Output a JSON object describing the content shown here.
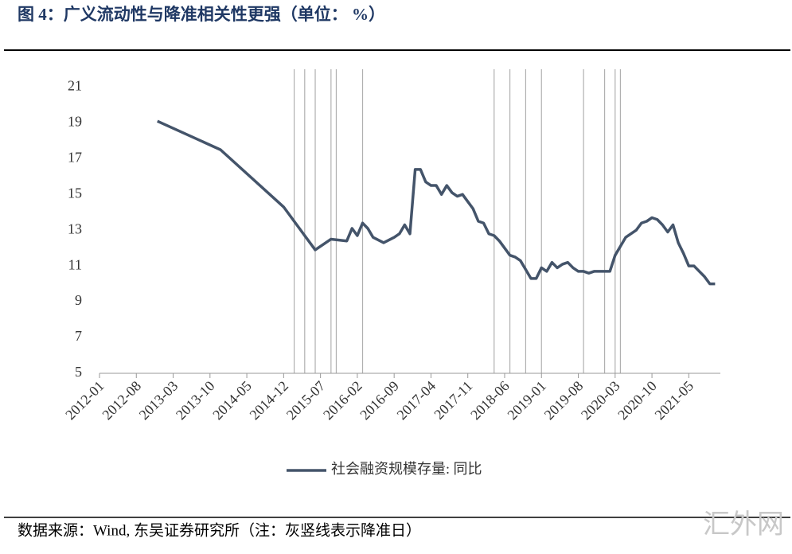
{
  "chart_data": {
    "type": "line",
    "title": "图 4：广义流动性与降准相关性更强（单位：  %）",
    "source": "数据来源：Wind, 东吴证券研究所（注：灰竖线表示降准日）",
    "watermark": "汇外网",
    "xlim": [
      "2012-01",
      "2021-11"
    ],
    "xticks": [
      "2012-01",
      "2012-08",
      "2013-03",
      "2013-10",
      "2014-05",
      "2014-12",
      "2015-07",
      "2016-02",
      "2016-09",
      "2017-04",
      "2017-11",
      "2018-06",
      "2019-01",
      "2019-08",
      "2020-03",
      "2020-10",
      "2021-05"
    ],
    "ylim": [
      5,
      22
    ],
    "yticks": [
      5,
      7,
      9,
      11,
      13,
      15,
      17,
      19,
      21
    ],
    "rrr_cut_color": "#b0b0b0",
    "rrr_cuts": [
      "2015-02",
      "2015-04",
      "2015-06",
      "2015-09",
      "2015-10",
      "2016-03",
      "2018-04",
      "2018-07",
      "2018-10",
      "2019-01",
      "2019-09",
      "2020-01",
      "2020-03",
      "2020-04"
    ],
    "x": [
      "2012-12",
      "2013-12",
      "2014-12",
      "2015-03",
      "2015-06",
      "2015-09",
      "2015-12",
      "2016-01",
      "2016-02",
      "2016-03",
      "2016-04",
      "2016-05",
      "2016-07",
      "2016-09",
      "2016-10",
      "2016-11",
      "2016-12",
      "2017-01",
      "2017-02",
      "2017-03",
      "2017-04",
      "2017-05",
      "2017-06",
      "2017-07",
      "2017-08",
      "2017-09",
      "2017-10",
      "2017-11",
      "2017-12",
      "2018-01",
      "2018-02",
      "2018-03",
      "2018-04",
      "2018-05",
      "2018-06",
      "2018-07",
      "2018-08",
      "2018-09",
      "2018-10",
      "2018-11",
      "2018-12",
      "2019-01",
      "2019-02",
      "2019-03",
      "2019-04",
      "2019-05",
      "2019-06",
      "2019-07",
      "2019-08",
      "2019-09",
      "2019-10",
      "2019-11",
      "2019-12",
      "2020-01",
      "2020-02",
      "2020-03",
      "2020-04",
      "2020-05",
      "2020-06",
      "2020-07",
      "2020-08",
      "2020-09",
      "2020-10",
      "2020-11",
      "2020-12",
      "2021-01",
      "2021-02",
      "2021-03",
      "2021-04",
      "2021-05",
      "2021-06",
      "2021-07",
      "2021-08",
      "2021-09",
      "2021-10"
    ],
    "series": [
      {
        "name": "社会融资规模存量: 同比",
        "color": "#44546a",
        "values": [
          19.1,
          17.5,
          14.3,
          13.1,
          11.9,
          12.5,
          12.4,
          13.1,
          12.7,
          13.4,
          13.1,
          12.6,
          12.3,
          12.6,
          12.8,
          13.3,
          12.8,
          16.4,
          16.4,
          15.7,
          15.5,
          15.5,
          15.0,
          15.5,
          15.1,
          14.9,
          15.0,
          14.6,
          14.2,
          13.5,
          13.4,
          12.8,
          12.7,
          12.4,
          12.0,
          11.6,
          11.5,
          11.3,
          10.8,
          10.3,
          10.3,
          10.9,
          10.7,
          11.2,
          10.9,
          11.1,
          11.2,
          10.9,
          10.7,
          10.7,
          10.6,
          10.7,
          10.7,
          10.7,
          10.7,
          11.6,
          12.1,
          12.6,
          12.8,
          13.0,
          13.4,
          13.5,
          13.7,
          13.6,
          13.3,
          12.9,
          13.3,
          12.3,
          11.7,
          11.0,
          11.0,
          10.7,
          10.4,
          10.0,
          10.0
        ]
      }
    ]
  }
}
